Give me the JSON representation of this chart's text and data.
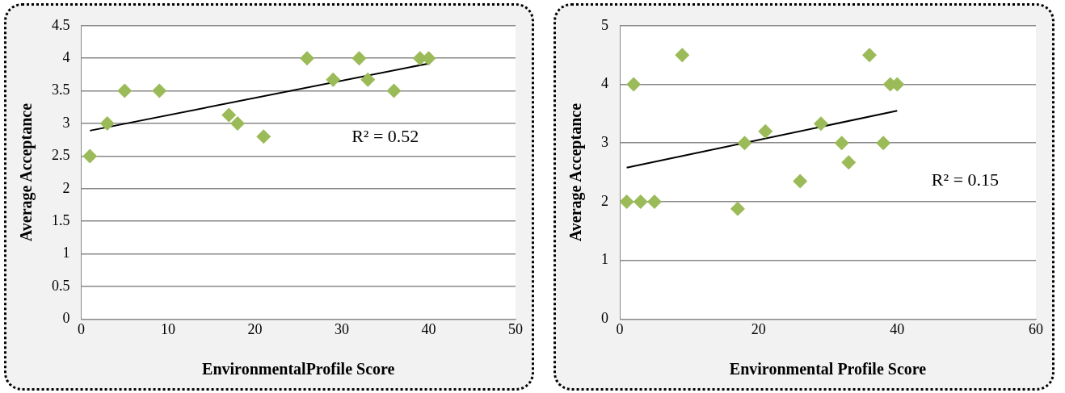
{
  "chart_data": [
    {
      "type": "scatter",
      "xlabel": "EnvironmentalProfile Score",
      "ylabel": "Average Acceptance",
      "xlim": [
        0,
        50
      ],
      "xticks": [
        0,
        10,
        20,
        30,
        40,
        50
      ],
      "ylim": [
        0,
        4.5
      ],
      "yticks": [
        0,
        0.5,
        1,
        1.5,
        2,
        2.5,
        3,
        3.5,
        4,
        4.5
      ],
      "grid": "y",
      "legend": false,
      "marker": "diamond",
      "series": [
        {
          "color": "#9bbb59",
          "x": [
            1,
            3,
            5,
            9,
            17,
            18,
            21,
            26,
            29,
            32,
            33,
            36,
            39,
            40
          ],
          "values": [
            2.5,
            3,
            3.5,
            3.5,
            3.13,
            3,
            2.8,
            4,
            3.67,
            4,
            3.67,
            3.5,
            4,
            4
          ]
        },
        {
          "type": "line",
          "color": "#000000",
          "marker": "none",
          "x": [
            1,
            40
          ],
          "values": [
            2.89,
            3.92
          ]
        }
      ],
      "annotations": [
        "R² = 0.52"
      ]
    },
    {
      "type": "scatter",
      "xlabel": "Environmental Profile Score",
      "ylabel": "Average Acceptance",
      "xlim": [
        0,
        60
      ],
      "xticks": [
        0,
        20,
        40,
        60
      ],
      "ylim": [
        0,
        5
      ],
      "yticks": [
        0,
        1,
        2,
        3,
        4,
        5
      ],
      "grid": "y",
      "legend": false,
      "marker": "diamond",
      "series": [
        {
          "color": "#9bbb59",
          "x": [
            1,
            2,
            3,
            5,
            9,
            17,
            18,
            21,
            26,
            29,
            32,
            33,
            36,
            38,
            39,
            40
          ],
          "values": [
            2,
            4,
            2,
            2,
            4.5,
            1.88,
            3,
            3.2,
            2.35,
            3.33,
            3,
            2.67,
            4.5,
            3,
            4,
            4
          ]
        },
        {
          "type": "line",
          "color": "#000000",
          "marker": "none",
          "x": [
            1,
            40
          ],
          "values": [
            2.58,
            3.55
          ]
        }
      ],
      "annotations": [
        "R² = 0.15"
      ]
    }
  ]
}
